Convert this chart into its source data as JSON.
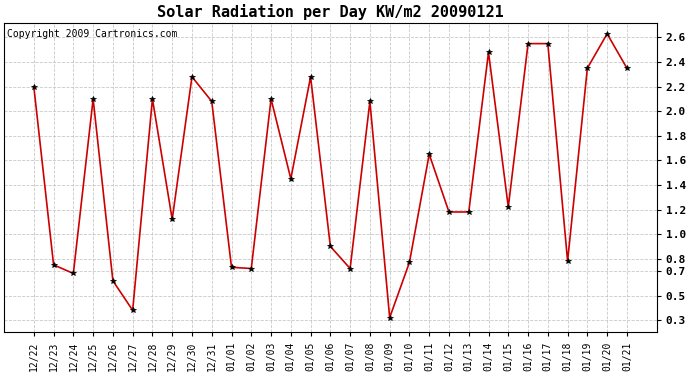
{
  "title": "Solar Radiation per Day KW/m2 20090121",
  "copyright": "Copyright 2009 Cartronics.com",
  "dates": [
    "12/22",
    "12/23",
    "12/24",
    "12/25",
    "12/26",
    "12/27",
    "12/28",
    "12/29",
    "12/30",
    "12/31",
    "01/01",
    "01/02",
    "01/03",
    "01/04",
    "01/05",
    "01/06",
    "01/07",
    "01/08",
    "01/09",
    "01/10",
    "01/11",
    "01/12",
    "01/13",
    "01/14",
    "01/15",
    "01/16",
    "01/17",
    "01/18",
    "01/19",
    "01/20",
    "01/21"
  ],
  "values": [
    2.2,
    0.75,
    0.68,
    2.1,
    0.62,
    0.38,
    2.1,
    1.12,
    2.28,
    2.08,
    0.73,
    0.72,
    2.1,
    1.45,
    2.28,
    0.9,
    0.72,
    2.08,
    0.32,
    0.77,
    1.65,
    1.18,
    1.18,
    2.48,
    1.22,
    2.55,
    2.55,
    0.78,
    2.35,
    2.63,
    2.35
  ],
  "line_color": "#cc0000",
  "marker": "*",
  "marker_color": "#000000",
  "bg_color": "#ffffff",
  "grid_color": "#bbbbbb",
  "ylim": [
    0.2,
    2.72
  ],
  "ytick_positions": [
    0.3,
    0.5,
    0.7,
    0.8,
    1.0,
    1.2,
    1.4,
    1.6,
    1.8,
    2.0,
    2.2,
    2.4,
    2.6
  ],
  "ytick_labels": [
    "0.3",
    "0.5",
    "0.7",
    "0.8",
    "1.0",
    "1.2",
    "1.4",
    "1.6",
    "1.8",
    "2.0",
    "2.2",
    "2.4",
    "2.6"
  ],
  "title_fontsize": 11,
  "copyright_fontsize": 7,
  "tick_fontsize": 7,
  "ytick_fontsize": 8
}
